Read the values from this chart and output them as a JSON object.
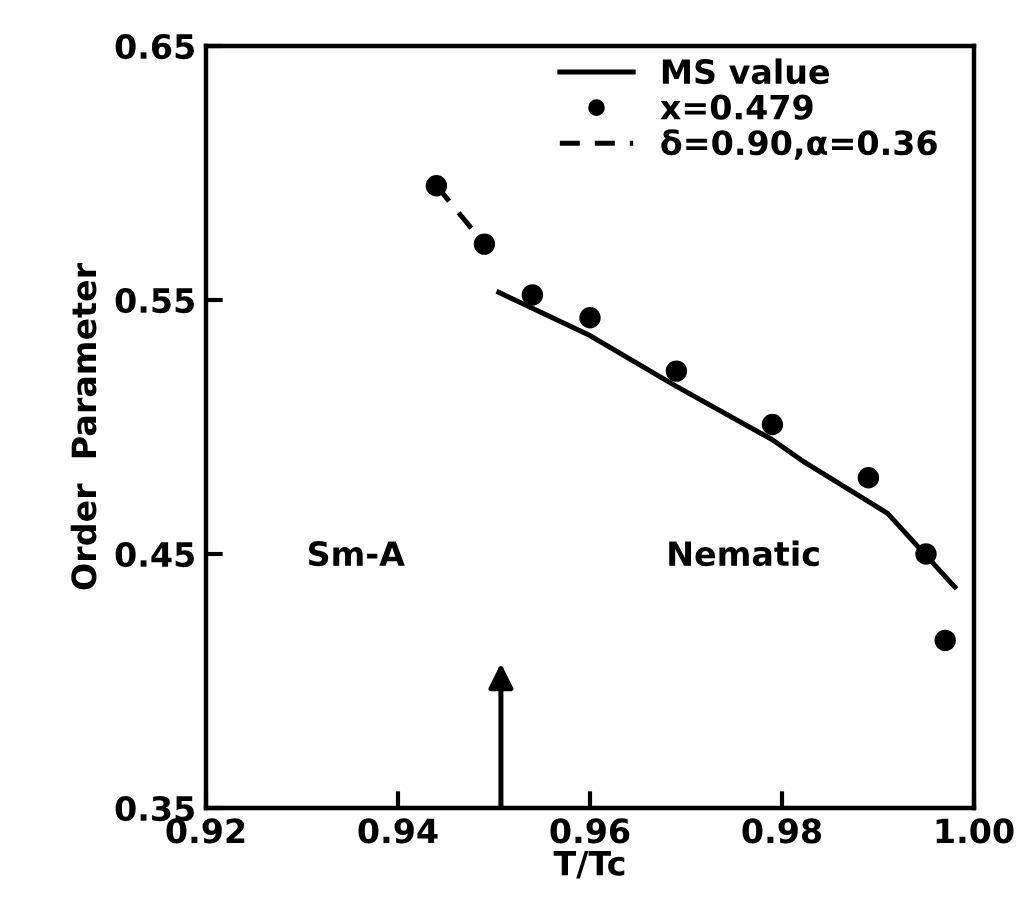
{
  "chart_data": {
    "type": "line",
    "xlabel": "T/Tc",
    "ylabel": "Order  Parameter",
    "xlim": [
      0.92,
      1.0
    ],
    "xticks": [
      0.92,
      0.94,
      0.96,
      0.98,
      {
        "value": 1.0,
        "label": "1.00"
      }
    ],
    "ylim": [
      0.35,
      0.65
    ],
    "yticks": [
      0.35,
      0.45,
      0.55,
      0.65
    ],
    "grid": false,
    "legend": "top right",
    "series": [
      {
        "name": "MS value",
        "line_style": "solid",
        "color": "#000000",
        "x": [
          0.9505,
          0.96,
          0.969,
          0.979,
          0.982,
          0.991,
          0.998
        ],
        "values": [
          0.553,
          0.536,
          0.516,
          0.495,
          0.487,
          0.466,
          0.437
        ]
      },
      {
        "name": "x=0.479",
        "type": "scatter",
        "marker": "circle",
        "color": "#000000",
        "x": [
          0.944,
          0.949,
          0.954,
          0.96,
          0.969,
          0.979,
          0.989,
          0.995,
          0.997
        ],
        "values": [
          0.595,
          0.572,
          0.552,
          0.543,
          0.522,
          0.501,
          0.48,
          0.45,
          0.416
        ]
      },
      {
        "name": "δ=0.90,α=0.36",
        "type": "line",
        "line_style": "dashed",
        "color": "#000000",
        "x": [
          0.944,
          0.949
        ],
        "values": [
          0.595,
          0.572
        ]
      }
    ],
    "annotations": [
      "Sm-A",
      "Nematic"
    ]
  }
}
